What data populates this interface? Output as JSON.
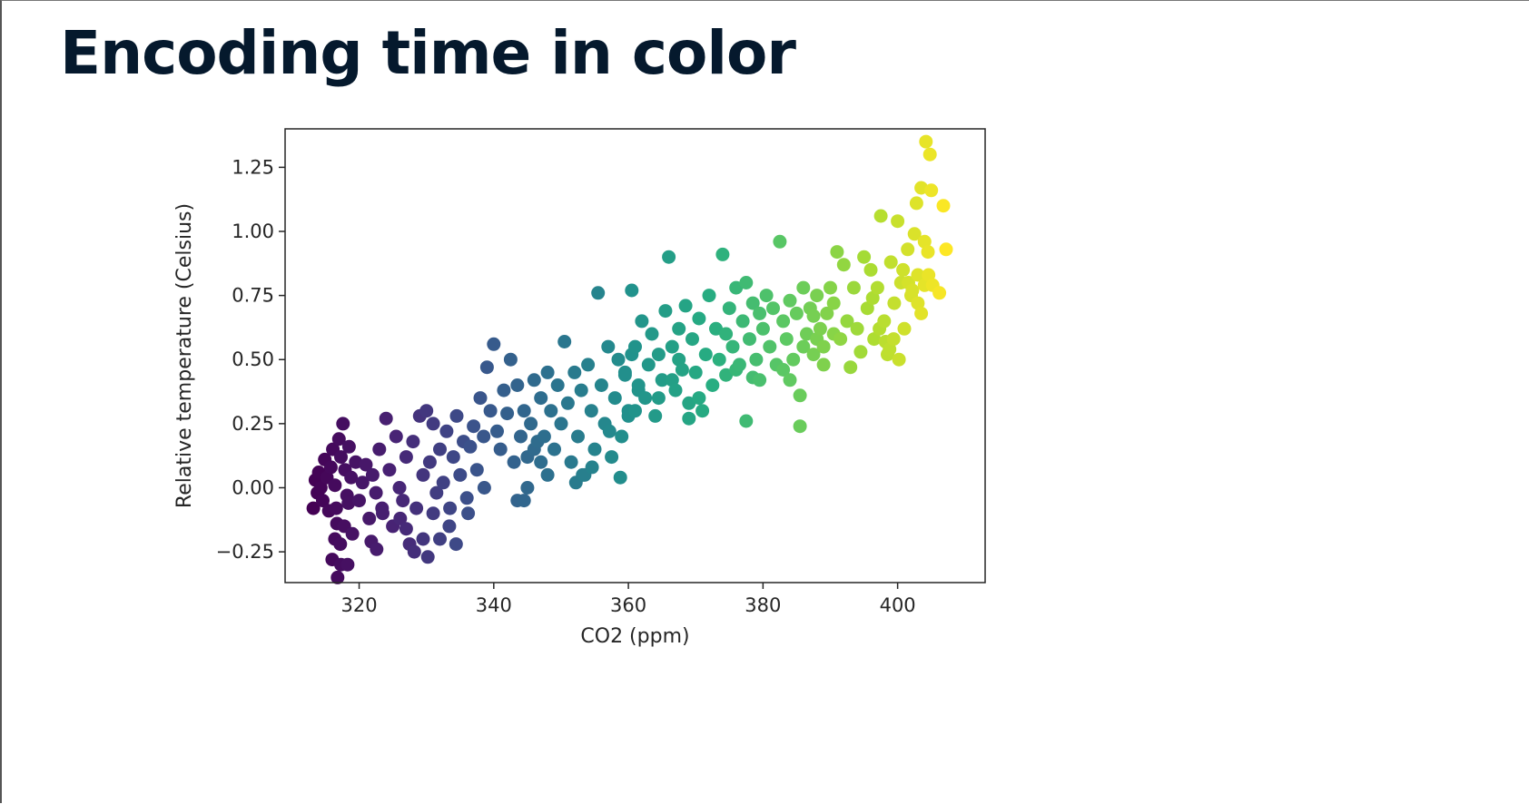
{
  "slide": {
    "title": "Encoding time in color"
  },
  "chart_data": {
    "type": "scatter",
    "xlabel": "CO2 (ppm)",
    "ylabel": "Relative temperature (Celsius)",
    "xlim": [
      309,
      413
    ],
    "ylim": [
      -0.37,
      1.4
    ],
    "xticks": [
      320,
      340,
      360,
      380,
      400
    ],
    "yticks": [
      -0.25,
      0.0,
      0.25,
      0.5,
      0.75,
      1.0,
      1.25
    ],
    "ytick_labels": [
      "−0.25",
      "0.00",
      "0.25",
      "0.50",
      "0.75",
      "1.00",
      "1.25"
    ],
    "colormap": "viridis",
    "color_encodes": "time",
    "grid": false,
    "points": [
      [
        313.5,
        0.03
      ],
      [
        313.8,
        -0.02
      ],
      [
        313.2,
        -0.08
      ],
      [
        314.0,
        0.06
      ],
      [
        314.3,
        0.0
      ],
      [
        314.6,
        -0.05
      ],
      [
        314.9,
        0.11
      ],
      [
        315.2,
        0.04
      ],
      [
        315.5,
        -0.09
      ],
      [
        315.8,
        0.08
      ],
      [
        316.1,
        0.15
      ],
      [
        316.4,
        0.01
      ],
      [
        316.7,
        -0.14
      ],
      [
        317.0,
        0.19
      ],
      [
        317.3,
        0.12
      ],
      [
        317.6,
        0.25
      ],
      [
        317.9,
        0.07
      ],
      [
        318.2,
        -0.03
      ],
      [
        318.5,
        0.16
      ],
      [
        318.8,
        0.04
      ],
      [
        316.0,
        -0.28
      ],
      [
        316.8,
        -0.35
      ],
      [
        317.3,
        -0.3
      ],
      [
        318.3,
        -0.3
      ],
      [
        316.4,
        -0.2
      ],
      [
        317.2,
        -0.22
      ],
      [
        316.6,
        -0.08
      ],
      [
        317.8,
        -0.15
      ],
      [
        318.4,
        -0.06
      ],
      [
        319.0,
        -0.18
      ],
      [
        319.5,
        0.1
      ],
      [
        320.0,
        -0.05
      ],
      [
        320.5,
        0.02
      ],
      [
        321.0,
        0.09
      ],
      [
        321.5,
        -0.12
      ],
      [
        322.0,
        0.05
      ],
      [
        322.5,
        -0.02
      ],
      [
        323.0,
        0.15
      ],
      [
        323.5,
        -0.1
      ],
      [
        324.0,
        0.27
      ],
      [
        324.5,
        0.07
      ],
      [
        325.0,
        -0.15
      ],
      [
        325.5,
        0.2
      ],
      [
        326.0,
        0.0
      ],
      [
        326.5,
        -0.05
      ],
      [
        327.0,
        0.12
      ],
      [
        327.5,
        -0.22
      ],
      [
        328.0,
        0.18
      ],
      [
        328.5,
        -0.08
      ],
      [
        329.0,
        0.28
      ],
      [
        321.8,
        -0.21
      ],
      [
        322.6,
        -0.24
      ],
      [
        323.4,
        -0.08
      ],
      [
        326.1,
        -0.12
      ],
      [
        327.0,
        -0.16
      ],
      [
        328.2,
        -0.25
      ],
      [
        329.5,
        -0.2
      ],
      [
        330.2,
        -0.27
      ],
      [
        331.0,
        -0.1
      ],
      [
        332.0,
        -0.2
      ],
      [
        329.5,
        0.05
      ],
      [
        330.0,
        0.3
      ],
      [
        330.5,
        0.1
      ],
      [
        331.0,
        0.25
      ],
      [
        331.5,
        -0.02
      ],
      [
        332.0,
        0.15
      ],
      [
        332.5,
        0.02
      ],
      [
        333.0,
        0.22
      ],
      [
        333.5,
        -0.08
      ],
      [
        334.0,
        0.12
      ],
      [
        334.5,
        0.28
      ],
      [
        335.0,
        0.05
      ],
      [
        335.5,
        0.18
      ],
      [
        336.0,
        -0.04
      ],
      [
        336.5,
        0.16
      ],
      [
        337.0,
        0.24
      ],
      [
        337.5,
        0.07
      ],
      [
        338.0,
        0.35
      ],
      [
        338.5,
        0.2
      ],
      [
        339.0,
        0.47
      ],
      [
        339.5,
        0.3
      ],
      [
        340.0,
        0.56
      ],
      [
        340.5,
        0.22
      ],
      [
        341.0,
        0.15
      ],
      [
        341.5,
        0.38
      ],
      [
        342.0,
        0.29
      ],
      [
        342.5,
        0.5
      ],
      [
        343.0,
        0.1
      ],
      [
        343.5,
        0.4
      ],
      [
        344.0,
        0.2
      ],
      [
        333.4,
        -0.15
      ],
      [
        334.4,
        -0.22
      ],
      [
        336.2,
        -0.1
      ],
      [
        338.6,
        0.0
      ],
      [
        343.5,
        -0.05
      ],
      [
        344.5,
        -0.05
      ],
      [
        345.0,
        0.0
      ],
      [
        347.0,
        0.1
      ],
      [
        346.0,
        0.15
      ],
      [
        348.0,
        0.05
      ],
      [
        344.5,
        0.3
      ],
      [
        345.0,
        0.12
      ],
      [
        345.5,
        0.25
      ],
      [
        346.0,
        0.42
      ],
      [
        346.5,
        0.18
      ],
      [
        347.0,
        0.35
      ],
      [
        347.5,
        0.2
      ],
      [
        348.0,
        0.45
      ],
      [
        348.5,
        0.3
      ],
      [
        349.0,
        0.15
      ],
      [
        349.5,
        0.4
      ],
      [
        350.0,
        0.25
      ],
      [
        350.5,
        0.57
      ],
      [
        351.0,
        0.33
      ],
      [
        351.5,
        0.1
      ],
      [
        352.0,
        0.45
      ],
      [
        352.5,
        0.2
      ],
      [
        353.0,
        0.38
      ],
      [
        353.5,
        0.05
      ],
      [
        354.0,
        0.48
      ],
      [
        354.5,
        0.3
      ],
      [
        355.0,
        0.15
      ],
      [
        355.5,
        0.76
      ],
      [
        356.0,
        0.4
      ],
      [
        356.5,
        0.25
      ],
      [
        357.0,
        0.55
      ],
      [
        357.5,
        0.12
      ],
      [
        358.0,
        0.35
      ],
      [
        358.5,
        0.5
      ],
      [
        359.0,
        0.2
      ],
      [
        352.2,
        0.02
      ],
      [
        353.2,
        0.05
      ],
      [
        354.6,
        0.08
      ],
      [
        357.2,
        0.22
      ],
      [
        358.8,
        0.04
      ],
      [
        360.0,
        0.28
      ],
      [
        361.0,
        0.3
      ],
      [
        359.5,
        0.44
      ],
      [
        360.5,
        0.52
      ],
      [
        361.5,
        0.38
      ],
      [
        359.5,
        0.45
      ],
      [
        360.0,
        0.3
      ],
      [
        360.5,
        0.77
      ],
      [
        361.0,
        0.55
      ],
      [
        361.5,
        0.4
      ],
      [
        362.0,
        0.65
      ],
      [
        362.5,
        0.35
      ],
      [
        363.0,
        0.48
      ],
      [
        363.5,
        0.6
      ],
      [
        364.0,
        0.28
      ],
      [
        364.5,
        0.52
      ],
      [
        365.0,
        0.42
      ],
      [
        365.5,
        0.69
      ],
      [
        366.0,
        0.9
      ],
      [
        366.5,
        0.55
      ],
      [
        367.0,
        0.38
      ],
      [
        367.5,
        0.62
      ],
      [
        368.0,
        0.46
      ],
      [
        368.5,
        0.71
      ],
      [
        369.0,
        0.33
      ],
      [
        369.5,
        0.58
      ],
      [
        370.0,
        0.45
      ],
      [
        370.5,
        0.66
      ],
      [
        371.0,
        0.3
      ],
      [
        371.5,
        0.52
      ],
      [
        372.0,
        0.75
      ],
      [
        372.5,
        0.4
      ],
      [
        373.0,
        0.62
      ],
      [
        373.5,
        0.5
      ],
      [
        374.0,
        0.91
      ],
      [
        369.0,
        0.27
      ],
      [
        370.5,
        0.35
      ],
      [
        374.5,
        0.44
      ],
      [
        376.0,
        0.46
      ],
      [
        377.5,
        0.26
      ],
      [
        378.5,
        0.43
      ],
      [
        379.5,
        0.42
      ],
      [
        366.5,
        0.42
      ],
      [
        367.5,
        0.5
      ],
      [
        364.5,
        0.35
      ],
      [
        374.5,
        0.6
      ],
      [
        375.0,
        0.7
      ],
      [
        375.5,
        0.55
      ],
      [
        376.0,
        0.78
      ],
      [
        376.5,
        0.48
      ],
      [
        377.0,
        0.65
      ],
      [
        377.5,
        0.8
      ],
      [
        378.0,
        0.58
      ],
      [
        378.5,
        0.72
      ],
      [
        379.0,
        0.5
      ],
      [
        379.5,
        0.68
      ],
      [
        380.0,
        0.62
      ],
      [
        380.5,
        0.75
      ],
      [
        381.0,
        0.55
      ],
      [
        381.5,
        0.7
      ],
      [
        382.0,
        0.48
      ],
      [
        382.5,
        0.96
      ],
      [
        383.0,
        0.65
      ],
      [
        383.5,
        0.58
      ],
      [
        384.0,
        0.73
      ],
      [
        384.5,
        0.5
      ],
      [
        385.0,
        0.68
      ],
      [
        385.5,
        0.36
      ],
      [
        386.0,
        0.78
      ],
      [
        386.5,
        0.6
      ],
      [
        387.0,
        0.7
      ],
      [
        387.5,
        0.52
      ],
      [
        388.0,
        0.75
      ],
      [
        388.5,
        0.62
      ],
      [
        389.0,
        0.55
      ],
      [
        385.5,
        0.24
      ],
      [
        384.0,
        0.42
      ],
      [
        383.0,
        0.46
      ],
      [
        386.0,
        0.55
      ],
      [
        387.5,
        0.67
      ],
      [
        389.5,
        0.68
      ],
      [
        390.0,
        0.78
      ],
      [
        390.5,
        0.6
      ],
      [
        389.0,
        0.48
      ],
      [
        388.0,
        0.58
      ],
      [
        390.5,
        0.72
      ],
      [
        391.0,
        0.92
      ],
      [
        391.5,
        0.58
      ],
      [
        392.0,
        0.87
      ],
      [
        392.5,
        0.65
      ],
      [
        393.0,
        0.47
      ],
      [
        393.5,
        0.78
      ],
      [
        394.0,
        0.62
      ],
      [
        394.5,
        0.53
      ],
      [
        395.0,
        0.9
      ],
      [
        395.5,
        0.7
      ],
      [
        396.0,
        0.85
      ],
      [
        396.5,
        0.58
      ],
      [
        397.0,
        0.78
      ],
      [
        397.5,
        1.06
      ],
      [
        398.0,
        0.65
      ],
      [
        398.5,
        0.52
      ],
      [
        399.0,
        0.88
      ],
      [
        399.5,
        0.72
      ],
      [
        400.0,
        1.04
      ],
      [
        400.5,
        0.8
      ],
      [
        401.0,
        0.62
      ],
      [
        401.5,
        0.93
      ],
      [
        402.0,
        0.75
      ],
      [
        402.5,
        0.99
      ],
      [
        403.0,
        0.83
      ],
      [
        403.5,
        0.68
      ],
      [
        404.0,
        0.79
      ],
      [
        404.5,
        0.92
      ],
      [
        405.0,
        1.16
      ],
      [
        402.8,
        1.11
      ],
      [
        403.5,
        1.17
      ],
      [
        404.0,
        0.96
      ],
      [
        404.6,
        0.83
      ],
      [
        405.2,
        0.79
      ],
      [
        404.2,
        1.35
      ],
      [
        404.8,
        1.3
      ],
      [
        406.2,
        0.76
      ],
      [
        406.8,
        1.1
      ],
      [
        407.2,
        0.93
      ],
      [
        396.3,
        0.74
      ],
      [
        397.3,
        0.62
      ],
      [
        398.2,
        0.57
      ],
      [
        398.8,
        0.54
      ],
      [
        399.4,
        0.58
      ],
      [
        400.2,
        0.5
      ],
      [
        400.8,
        0.85
      ],
      [
        401.6,
        0.8
      ],
      [
        402.2,
        0.77
      ],
      [
        403.0,
        0.72
      ]
    ]
  }
}
